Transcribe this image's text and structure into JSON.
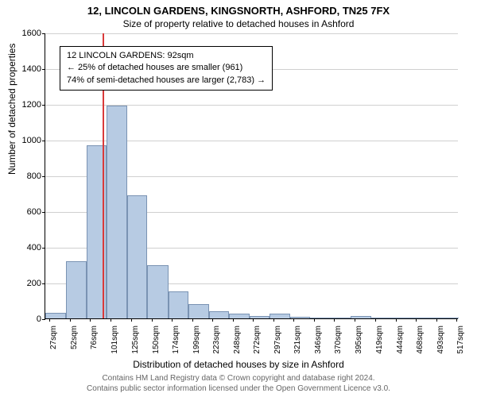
{
  "titles": {
    "main": "12, LINCOLN GARDENS, KINGSNORTH, ASHFORD, TN25 7FX",
    "sub": "Size of property relative to detached houses in Ashford"
  },
  "axes": {
    "ylabel": "Number of detached properties",
    "xlabel": "Distribution of detached houses by size in Ashford",
    "ylim": [
      0,
      1600
    ],
    "yticks": [
      0,
      200,
      400,
      600,
      800,
      1000,
      1200,
      1400,
      1600
    ],
    "xlim": [
      22,
      520
    ]
  },
  "style": {
    "bar_color": "#b7cbe3",
    "bar_border": "#7a93b3",
    "grid_color": "#d0d0d0",
    "ref_line_color": "#d93a3a",
    "background": "#ffffff",
    "title_fontsize": 13,
    "subtitle_fontsize": 12,
    "axis_label_fontsize": 12,
    "tick_fontsize": 11,
    "xtick_fontsize": 10,
    "info_fontsize": 11,
    "attribution_fontsize": 10
  },
  "xticks": [
    {
      "v": 27,
      "label": "27sqm"
    },
    {
      "v": 52,
      "label": "52sqm"
    },
    {
      "v": 76,
      "label": "76sqm"
    },
    {
      "v": 101,
      "label": "101sqm"
    },
    {
      "v": 125,
      "label": "125sqm"
    },
    {
      "v": 150,
      "label": "150sqm"
    },
    {
      "v": 174,
      "label": "174sqm"
    },
    {
      "v": 199,
      "label": "199sqm"
    },
    {
      "v": 223,
      "label": "223sqm"
    },
    {
      "v": 248,
      "label": "248sqm"
    },
    {
      "v": 272,
      "label": "272sqm"
    },
    {
      "v": 297,
      "label": "297sqm"
    },
    {
      "v": 321,
      "label": "321sqm"
    },
    {
      "v": 346,
      "label": "346sqm"
    },
    {
      "v": 370,
      "label": "370sqm"
    },
    {
      "v": 395,
      "label": "395sqm"
    },
    {
      "v": 419,
      "label": "419sqm"
    },
    {
      "v": 444,
      "label": "444sqm"
    },
    {
      "v": 468,
      "label": "468sqm"
    },
    {
      "v": 493,
      "label": "493sqm"
    },
    {
      "v": 517,
      "label": "517sqm"
    }
  ],
  "bars": [
    {
      "x0": 22,
      "x1": 47,
      "y": 30
    },
    {
      "x0": 47,
      "x1": 72,
      "y": 320
    },
    {
      "x0": 72,
      "x1": 96,
      "y": 970
    },
    {
      "x0": 96,
      "x1": 121,
      "y": 1190
    },
    {
      "x0": 121,
      "x1": 145,
      "y": 690
    },
    {
      "x0": 145,
      "x1": 170,
      "y": 300
    },
    {
      "x0": 170,
      "x1": 194,
      "y": 150
    },
    {
      "x0": 194,
      "x1": 219,
      "y": 80
    },
    {
      "x0": 219,
      "x1": 243,
      "y": 40
    },
    {
      "x0": 243,
      "x1": 268,
      "y": 25
    },
    {
      "x0": 268,
      "x1": 292,
      "y": 15
    },
    {
      "x0": 292,
      "x1": 317,
      "y": 25
    },
    {
      "x0": 317,
      "x1": 341,
      "y": 10
    },
    {
      "x0": 341,
      "x1": 366,
      "y": 6
    },
    {
      "x0": 366,
      "x1": 390,
      "y": 4
    },
    {
      "x0": 390,
      "x1": 415,
      "y": 15
    },
    {
      "x0": 415,
      "x1": 439,
      "y": 2
    },
    {
      "x0": 439,
      "x1": 464,
      "y": 2
    },
    {
      "x0": 464,
      "x1": 488,
      "y": 2
    },
    {
      "x0": 488,
      "x1": 513,
      "y": 1
    },
    {
      "x0": 513,
      "x1": 520,
      "y": 0
    }
  ],
  "refline": {
    "x": 92
  },
  "infobox": {
    "line1": "12 LINCOLN GARDENS: 92sqm",
    "line2": "← 25% of detached houses are smaller (961)",
    "line3": "74% of semi-detached houses are larger (2,783) →"
  },
  "attribution": {
    "line1": "Contains HM Land Registry data © Crown copyright and database right 2024.",
    "line2": "Contains public sector information licensed under the Open Government Licence v3.0."
  }
}
